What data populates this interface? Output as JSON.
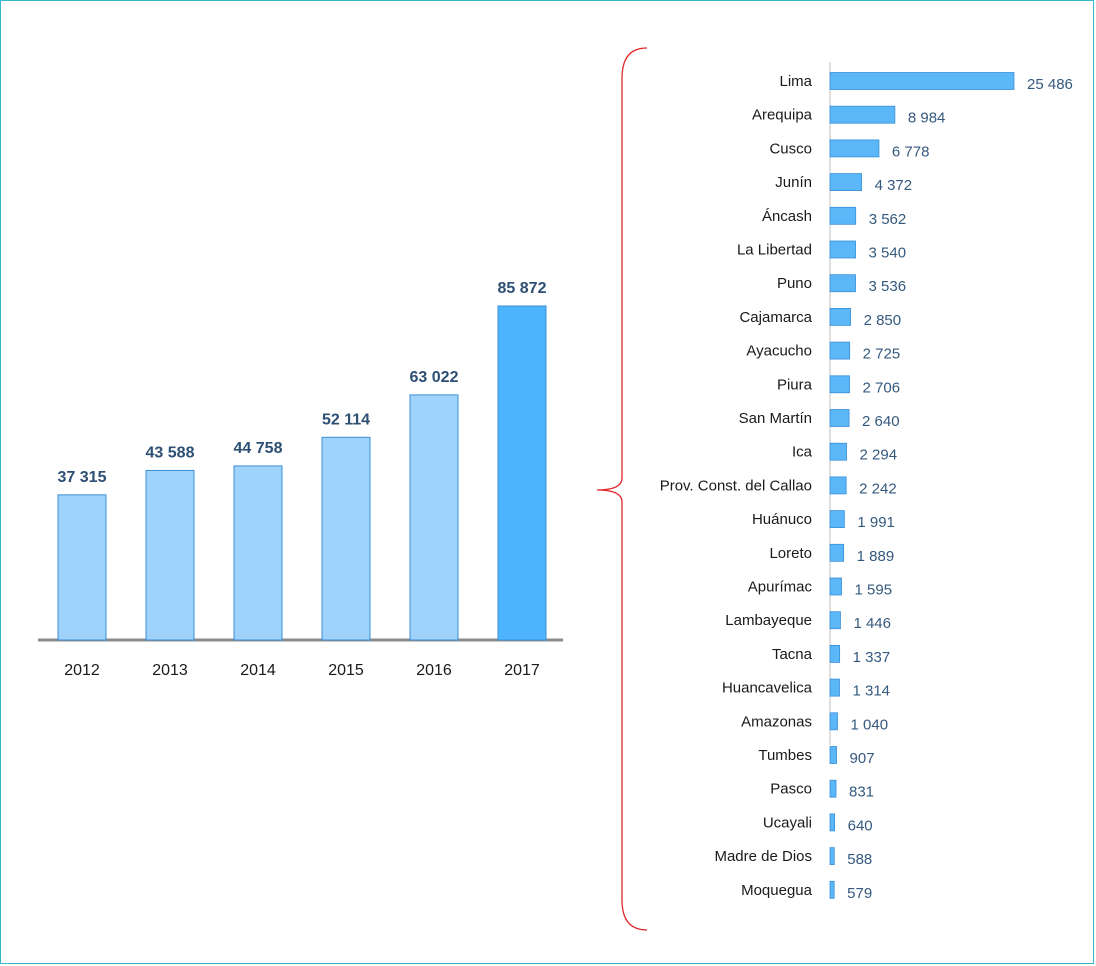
{
  "colors": {
    "frame": "#35b8cf",
    "bar_light": "#9fd3fb",
    "bar_highlight": "#4db3fc",
    "bar_right": "#5cb7f9",
    "bar_stroke": "#3a8fd8",
    "axis": "#8c8c8c",
    "brace": "#e0292c",
    "label_dark": "#1a1a1a",
    "value_left": "#2d4f73",
    "value_right": "#35597e"
  },
  "chart_data": [
    {
      "type": "bar",
      "orientation": "vertical",
      "title": "",
      "xlabel": "",
      "ylabel": "",
      "categories": [
        "2012",
        "2013",
        "2014",
        "2015",
        "2016",
        "2017"
      ],
      "values": [
        37315,
        43588,
        44758,
        52114,
        63022,
        85872
      ],
      "value_labels": [
        "37 315",
        "43 588",
        "44 758",
        "52 114",
        "63 022",
        "85 872"
      ],
      "highlight_index": 5,
      "ylim": [
        0,
        100000
      ],
      "grid": false,
      "legend": "none"
    },
    {
      "type": "bar",
      "orientation": "horizontal",
      "title": "",
      "xlabel": "",
      "ylabel": "",
      "categories": [
        "Lima",
        "Arequipa",
        "Cusco",
        "Junín",
        "Áncash",
        "La Libertad",
        "Puno",
        "Cajamarca",
        "Ayacucho",
        "Piura",
        "San Martín",
        "Ica",
        "Prov. Const. del Callao",
        "Huánuco",
        "Loreto",
        "Apurímac",
        "Lambayeque",
        "Tacna",
        "Huancavelica",
        "Amazonas",
        "Tumbes",
        "Pasco",
        "Ucayali",
        "Madre de Dios",
        "Moquegua"
      ],
      "values": [
        25486,
        8984,
        6778,
        4372,
        3562,
        3540,
        3536,
        2850,
        2725,
        2706,
        2640,
        2294,
        2242,
        1991,
        1889,
        1595,
        1446,
        1337,
        1314,
        1040,
        907,
        831,
        640,
        588,
        579
      ],
      "value_labels": [
        "25 486",
        "8 984",
        "6 778",
        "4 372",
        "3 562",
        "3 540",
        "3 536",
        "2 850",
        "2 725",
        "2 706",
        "2 640",
        "2 294",
        "2 242",
        "1 991",
        "1 889",
        "1 595",
        "1 446",
        "1 337",
        "1 314",
        "1 040",
        "907",
        "831",
        "640",
        "588",
        "579"
      ],
      "xlim": [
        0,
        25486
      ],
      "grid": false,
      "legend": "none"
    }
  ]
}
